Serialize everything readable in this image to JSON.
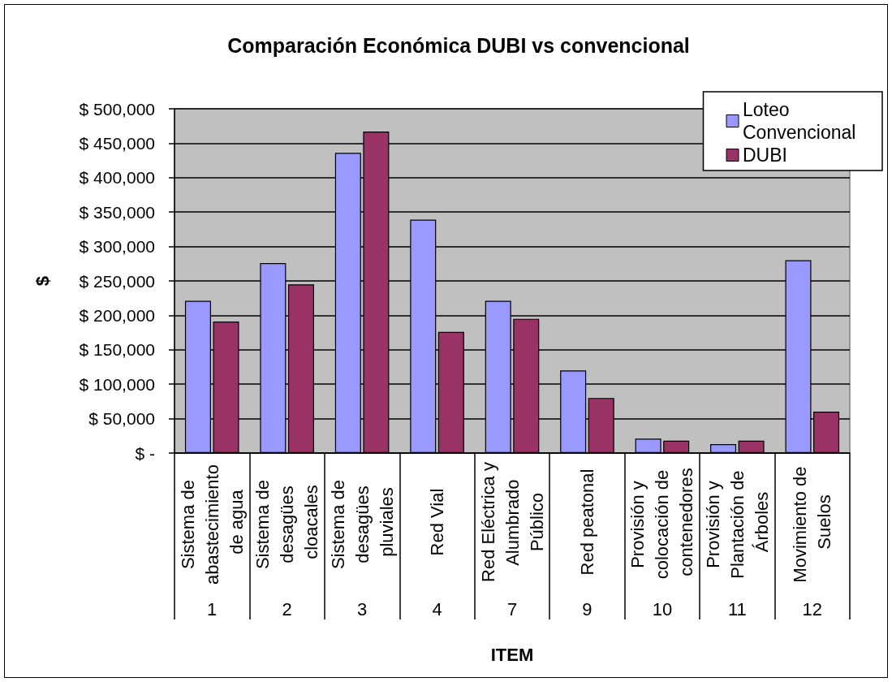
{
  "chart_data": {
    "type": "bar",
    "title": "Comparación Económica DUBI vs convencional",
    "xlabel": "ITEM",
    "ylabel": "$",
    "categories": [
      "Sistema de abastecimiento de agua",
      "Sistema de desagües cloacales",
      "Sistema de desagües pluviales",
      "Red Vial",
      "Red Eléctrica y Alumbrado Público",
      "Red peatonal",
      "Provisión y colocación de contenedores",
      "Provisión y Plantación de Árboles",
      "Movimiento de Suelos"
    ],
    "series": [
      {
        "name": "Loteo Convencional",
        "color": "#9999ff",
        "values": [
          221000,
          276000,
          436000,
          339000,
          221000,
          120000,
          21000,
          13000,
          280000
        ]
      },
      {
        "name": "DUBI",
        "color": "#993366",
        "values": [
          191000,
          245000,
          467000,
          176000,
          195000,
          80000,
          18000,
          18000,
          60000
        ]
      }
    ],
    "annotations": [
      "1",
      "2",
      "3",
      "4",
      "7",
      "9",
      "10",
      "11",
      "12"
    ],
    "ylim": [
      0,
      500000
    ],
    "yticks": [
      {
        "value": 0,
        "label": "$ -"
      },
      {
        "value": 50000,
        "label": "$ 50,000"
      },
      {
        "value": 100000,
        "label": "$ 100,000"
      },
      {
        "value": 150000,
        "label": "$ 150,000"
      },
      {
        "value": 200000,
        "label": "$ 200,000"
      },
      {
        "value": 250000,
        "label": "$ 250,000"
      },
      {
        "value": 300000,
        "label": "$ 300,000"
      },
      {
        "value": 350000,
        "label": "$ 350,000"
      },
      {
        "value": 400000,
        "label": "$ 400,000"
      },
      {
        "value": 450000,
        "label": "$ 450,000"
      },
      {
        "value": 500000,
        "label": "$ 500,000"
      }
    ],
    "grid": "y",
    "legend": "top right"
  }
}
